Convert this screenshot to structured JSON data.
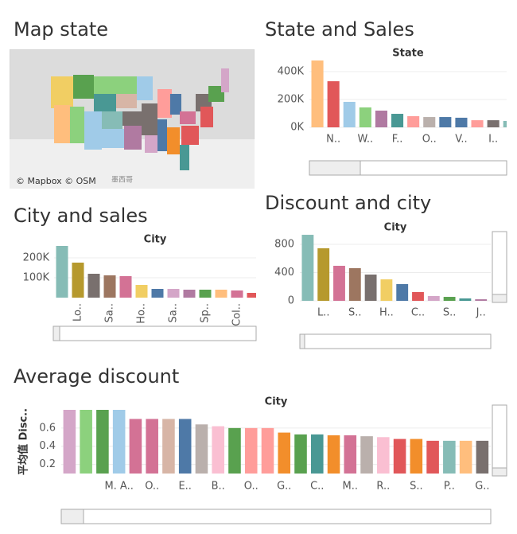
{
  "chart_data": [
    {
      "type": "map",
      "title": "Map state",
      "attribution": "© Mapbox © OSM",
      "labels": [
        "墨西哥"
      ]
    },
    {
      "type": "bar",
      "title": "State and Sales",
      "x_label": "State",
      "categories": [
        null,
        "N..",
        null,
        "W..",
        null,
        "F..",
        null,
        "O..",
        null,
        "V..",
        null,
        "I..",
        null
      ],
      "values": [
        480000,
        331000,
        183000,
        143000,
        120000,
        97000,
        80000,
        74000,
        74000,
        69000,
        51000,
        51000,
        46000
      ],
      "colors": [
        "#ffbe7d",
        "#e15759",
        "#a0cbe8",
        "#8cd17d",
        "#b07aa1",
        "#499894",
        "#ff9d9a",
        "#bab0ac",
        "#4e79a7",
        "#4e79a7",
        "#ff9d9a",
        "#79706e",
        "#86bcb6"
      ],
      "ylim": [
        0,
        500000
      ],
      "yticks": [
        {
          "value": 0,
          "label": "0K"
        },
        {
          "value": 200000,
          "label": "200K"
        },
        {
          "value": 400000,
          "label": "400K"
        }
      ],
      "grid": true
    },
    {
      "type": "bar",
      "title": "City and sales",
      "x_label": "City",
      "categories": [
        null,
        "Lo..",
        null,
        "Sa..",
        null,
        "Ho..",
        null,
        "Sa..",
        null,
        "Sp..",
        null,
        "Col..",
        null
      ],
      "values": [
        260000,
        176000,
        120000,
        112000,
        108000,
        64000,
        44000,
        44000,
        40000,
        40000,
        40000,
        36000,
        24000
      ],
      "colors": [
        "#86bcb6",
        "#b6992d",
        "#79706e",
        "#9d7660",
        "#d37295",
        "#f1ce63",
        "#4e79a7",
        "#d4a6c8",
        "#b07aa1",
        "#59a14f",
        "#ffbe7d",
        "#d37295",
        "#e15759"
      ],
      "ylim": [
        0,
        290000
      ],
      "yticks": [
        {
          "value": 100000,
          "label": "100K"
        },
        {
          "value": 200000,
          "label": "200K"
        }
      ],
      "grid": true
    },
    {
      "type": "bar",
      "title": "Discount and city",
      "x_label": "City",
      "categories": [
        null,
        "L..",
        null,
        "S..",
        null,
        "H..",
        null,
        "C..",
        null,
        "S..",
        null,
        "J.."
      ],
      "values": [
        935,
        744,
        496,
        462,
        372,
        304,
        237,
        124,
        68,
        56,
        34,
        22
      ],
      "colors": [
        "#86bcb6",
        "#b6992d",
        "#d37295",
        "#9d7660",
        "#79706e",
        "#f1ce63",
        "#4e79a7",
        "#e15759",
        "#d4a6c8",
        "#59a14f",
        "#499894",
        "#b07aa1"
      ],
      "ylim": [
        0,
        950
      ],
      "yticks": [
        0,
        400,
        800
      ],
      "grid": true
    },
    {
      "type": "bar",
      "title": "Average discount",
      "x_label": "City",
      "y_label": "平均值 Disc..",
      "categories": [
        null,
        null,
        null,
        "M. A..",
        null,
        "O..",
        null,
        "E..",
        null,
        "B..",
        null,
        "O..",
        null,
        "G..",
        null,
        "C..",
        null,
        "M..",
        null,
        "R..",
        null,
        "S..",
        null,
        "P..",
        null,
        "G.."
      ],
      "values": [
        0.8,
        0.8,
        0.8,
        0.8,
        0.7,
        0.7,
        0.7,
        0.7,
        0.64,
        0.62,
        0.6,
        0.6,
        0.6,
        0.55,
        0.53,
        0.53,
        0.52,
        0.52,
        0.51,
        0.5,
        0.48,
        0.48,
        0.46,
        0.46,
        0.46,
        0.46
      ],
      "colors": [
        "#d4a6c8",
        "#8cd17d",
        "#59a14f",
        "#a0cbe8",
        "#d37295",
        "#d37295",
        "#d7b5a6",
        "#4e79a7",
        "#bab0ac",
        "#fabfd2",
        "#59a14f",
        "#ff9d9a",
        "#ff9d9a",
        "#f28e2b",
        "#59a14f",
        "#499894",
        "#f28e2b",
        "#d37295",
        "#bab0ac",
        "#fabfd2",
        "#e15759",
        "#f28e2b",
        "#e15759",
        "#86bcb6",
        "#ffbe7d",
        "#79706e"
      ],
      "ylim": [
        0.1,
        0.8
      ],
      "yticks": [
        0.2,
        0.4,
        0.6
      ],
      "grid": true
    }
  ]
}
